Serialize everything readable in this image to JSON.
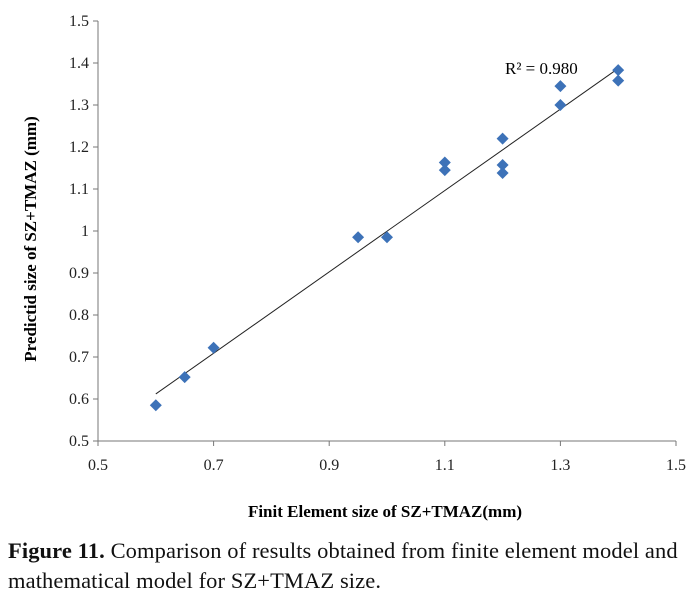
{
  "chart_data": {
    "type": "scatter",
    "xlabel": "Finit Element size of SZ+TMAZ(mm)",
    "ylabel": "Predictid size of SZ+TMAZ (mm)",
    "xlim": [
      0.5,
      1.5
    ],
    "ylim": [
      0.5,
      1.5
    ],
    "x_ticks": [
      "0.5",
      "0.7",
      "0.9",
      "1.1",
      "1.3",
      "1.5"
    ],
    "y_ticks": [
      "0.5",
      "0.6",
      "0.7",
      "0.8",
      "0.9",
      "1",
      "1.1",
      "1.2",
      "1.3",
      "1.4",
      "1.5"
    ],
    "points": [
      {
        "x": 0.6,
        "y": 0.585
      },
      {
        "x": 0.65,
        "y": 0.652
      },
      {
        "x": 0.7,
        "y": 0.722
      },
      {
        "x": 0.95,
        "y": 0.985
      },
      {
        "x": 1.0,
        "y": 0.985
      },
      {
        "x": 1.1,
        "y": 1.145
      },
      {
        "x": 1.1,
        "y": 1.163
      },
      {
        "x": 1.2,
        "y": 1.138
      },
      {
        "x": 1.2,
        "y": 1.157
      },
      {
        "x": 1.2,
        "y": 1.22
      },
      {
        "x": 1.3,
        "y": 1.3
      },
      {
        "x": 1.3,
        "y": 1.345
      },
      {
        "x": 1.4,
        "y": 1.358
      },
      {
        "x": 1.4,
        "y": 1.383
      }
    ],
    "trendline": {
      "x": [
        0.6,
        1.4
      ],
      "y": [
        0.612,
        1.387
      ]
    },
    "annotation": "R² = 0.980",
    "marker_color": "#3d72b8",
    "grid": false,
    "legend": "none"
  },
  "caption": {
    "label": "Figure 11.",
    "text": " Comparison of results obtained from finite element model and mathematical model for SZ+TMAZ size."
  }
}
